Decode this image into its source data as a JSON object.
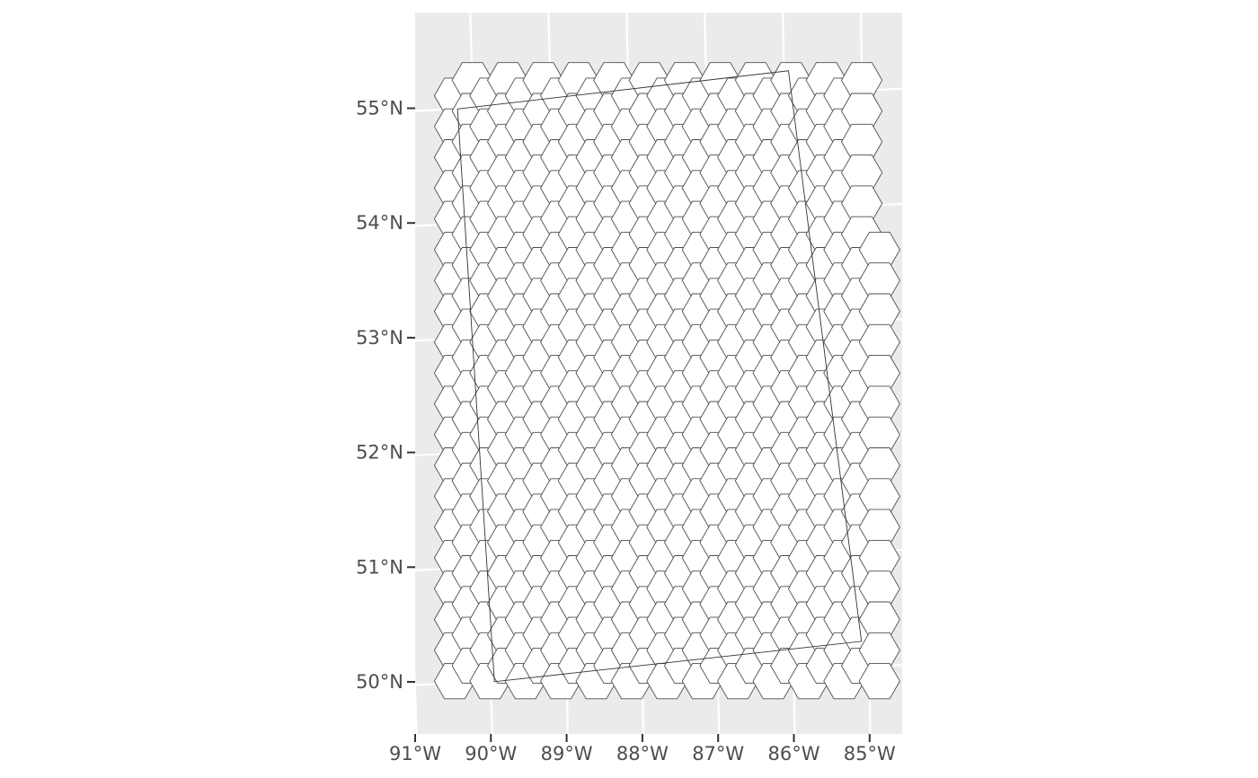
{
  "map": {
    "panel_background": "#ebebeb",
    "graticule_color": "#ffffff",
    "hex_fill": "#ffffff",
    "hex_stroke": "#4d4d4d",
    "x_axis": {
      "ticks": [
        {
          "value": -91,
          "label": "91°W"
        },
        {
          "value": -90,
          "label": "90°W"
        },
        {
          "value": -89,
          "label": "89°W"
        },
        {
          "value": -88,
          "label": "88°W"
        },
        {
          "value": -87,
          "label": "87°W"
        },
        {
          "value": -86,
          "label": "86°W"
        },
        {
          "value": -85,
          "label": "85°W"
        }
      ]
    },
    "y_axis": {
      "ticks": [
        {
          "value": 50,
          "label": "50°N"
        },
        {
          "value": 51,
          "label": "51°N"
        },
        {
          "value": 52,
          "label": "52°N"
        },
        {
          "value": 53,
          "label": "53°N"
        },
        {
          "value": 54,
          "label": "54°N"
        },
        {
          "value": 55,
          "label": "55°N"
        }
      ]
    },
    "study_area_corners": [
      {
        "lon": -90.2,
        "lat": 55.0
      },
      {
        "lon": -85.94,
        "lat": 55.2
      },
      {
        "lon": -85.1,
        "lat": 50.22
      },
      {
        "lon": -89.95,
        "lat": 50.0
      }
    ]
  }
}
